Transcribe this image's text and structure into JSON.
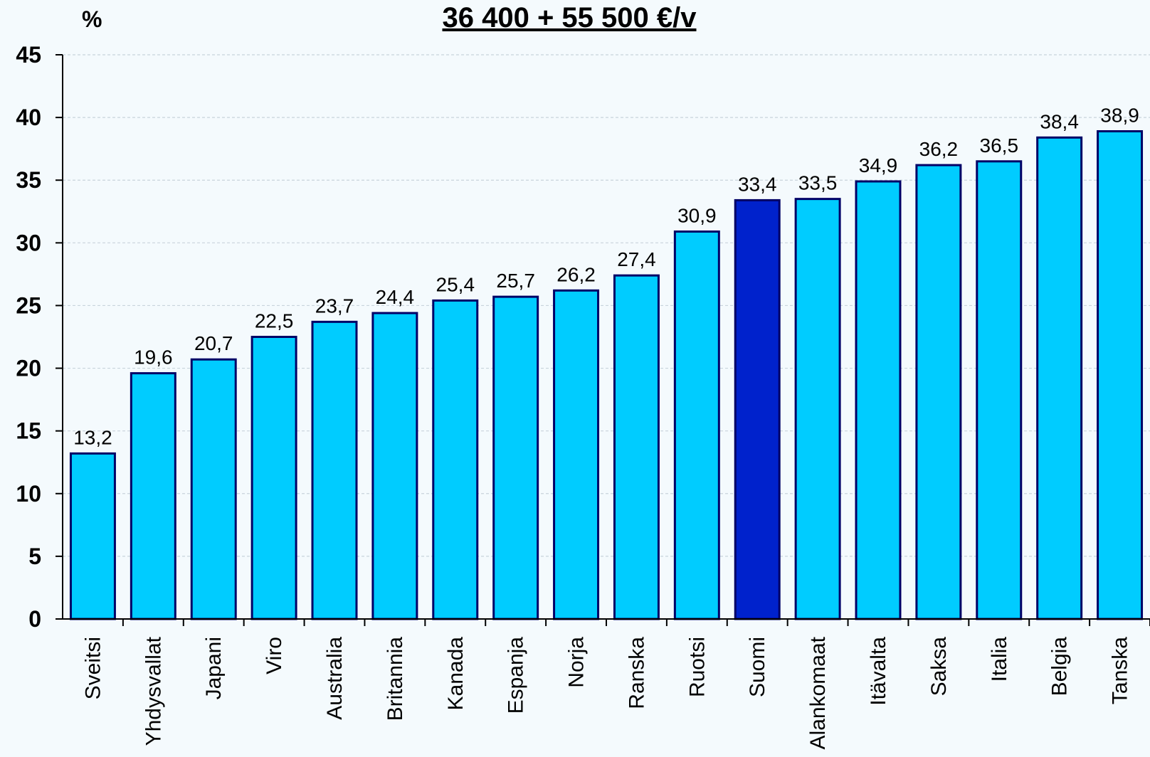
{
  "chart_data": {
    "type": "bar",
    "title": "36 400 + 55 500 €/v",
    "ylabel": "%",
    "xlabel": "",
    "ylim": [
      0,
      45
    ],
    "yticks": [
      0,
      5,
      10,
      15,
      20,
      25,
      30,
      35,
      40,
      45
    ],
    "grid": true,
    "categories": [
      "Sveitsi",
      "Yhdysvallat",
      "Japani",
      "Viro",
      "Australia",
      "Britannia",
      "Kanada",
      "Espanja",
      "Norja",
      "Ranska",
      "Ruotsi",
      "Suomi",
      "Alankomaat",
      "Itävalta",
      "Saksa",
      "Italia",
      "Belgia",
      "Tanska"
    ],
    "values": [
      13.2,
      19.6,
      20.7,
      22.5,
      23.7,
      24.4,
      25.4,
      25.7,
      26.2,
      27.4,
      30.9,
      33.4,
      33.5,
      34.9,
      36.2,
      36.5,
      38.4,
      38.9
    ],
    "value_labels": [
      "13,2",
      "19,6",
      "20,7",
      "22,5",
      "23,7",
      "24,4",
      "25,4",
      "25,7",
      "26,2",
      "27,4",
      "30,9",
      "33,4",
      "33,5",
      "34,9",
      "36,2",
      "36,5",
      "38,4",
      "38,9"
    ],
    "highlight_category": "Suomi",
    "colors": {
      "bar": "#00ccff",
      "highlight": "#0022cc",
      "bar_outline": "#000066",
      "grid": "#c8d4dc",
      "axis": "#000000",
      "background": "#f4fafd"
    }
  }
}
